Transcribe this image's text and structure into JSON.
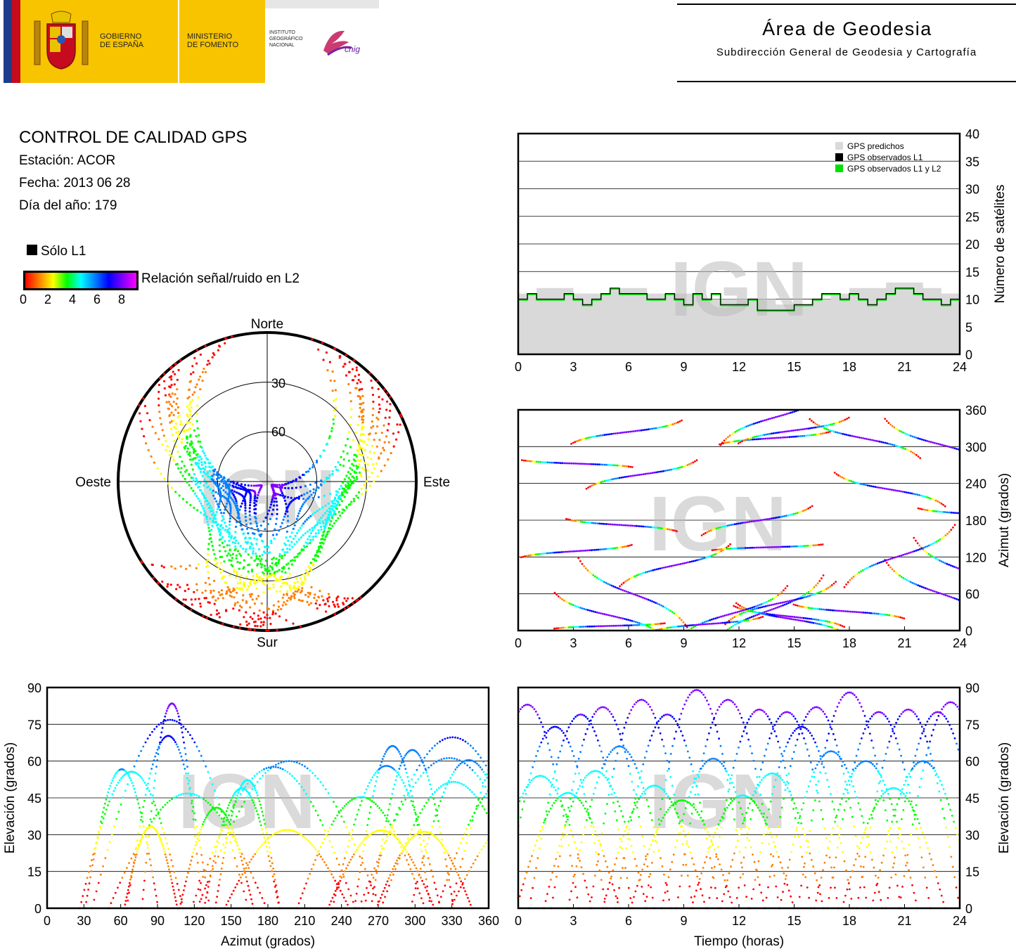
{
  "header": {
    "gobierno": [
      "GOBIERNO",
      "DE ESPAÑA"
    ],
    "ministerio": [
      "MINISTERIO",
      "DE FOMENTO"
    ],
    "instituto": [
      "INSTITUTO",
      "GEOGRÁFICO",
      "NACIONAL"
    ],
    "cnig": "cnig",
    "area_title": "Área de Geodesia",
    "area_subtitle": "Subdirección General de Geodesia y Cartografía"
  },
  "info": {
    "title": "CONTROL DE CALIDAD GPS",
    "station": "Estación: ACOR",
    "date": "Fecha: 2013 06 28",
    "doy": "Día del año: 179"
  },
  "legend": {
    "l1_only": "Sólo L1",
    "snr_label": "Relación señal/ruido en L2",
    "snr_ticks": [
      "0",
      "2",
      "4",
      "6",
      "8"
    ],
    "colorbar": [
      "#ff0000",
      "#ff8000",
      "#ffff00",
      "#00ff00",
      "#00ffff",
      "#0080ff",
      "#0000ff",
      "#8000ff",
      "#ff00ff"
    ]
  },
  "watermark": "IGN",
  "chart_data": [
    {
      "type": "polar-skyplot",
      "id": "skyplot",
      "labels": {
        "n": "Norte",
        "s": "Sur",
        "e": "Este",
        "w": "Oeste"
      },
      "ring_labels": [
        "30",
        "60"
      ],
      "rings_elevation": [
        0,
        30,
        60
      ]
    },
    {
      "type": "area-line",
      "id": "satcount",
      "ylabel": "Número de satélites",
      "xticks": [
        "0",
        "3",
        "6",
        "9",
        "12",
        "15",
        "18",
        "21",
        "24"
      ],
      "yticks": [
        "0",
        "5",
        "10",
        "15",
        "20",
        "25",
        "30",
        "35",
        "40"
      ],
      "xlim": [
        0,
        24
      ],
      "ylim": [
        0,
        40
      ],
      "legend": [
        {
          "name": "GPS predichos",
          "color": "#d9d9d9"
        },
        {
          "name": "GPS observados L1",
          "color": "#000000"
        },
        {
          "name": "GPS observados L1 y L2",
          "color": "#00e000"
        }
      ],
      "predicted_hours": [
        0,
        1,
        2,
        3,
        4,
        5,
        6,
        7,
        8,
        9,
        10,
        11,
        12,
        13,
        14,
        15,
        16,
        17,
        18,
        19,
        20,
        21,
        22,
        23,
        24
      ],
      "predicted_values": [
        11,
        12,
        12,
        11,
        11,
        12,
        12,
        11,
        11,
        11,
        10,
        10,
        10,
        10,
        9,
        9,
        10,
        11,
        12,
        12,
        13,
        13,
        12,
        11,
        11
      ],
      "observed_hours": [
        0,
        0.5,
        1,
        1.5,
        2,
        2.5,
        3,
        3.5,
        4,
        4.5,
        5,
        5.5,
        6,
        6.5,
        7,
        7.5,
        8,
        8.5,
        9,
        9.5,
        10,
        10.5,
        11,
        11.5,
        12,
        12.5,
        13,
        13.5,
        14,
        14.5,
        15,
        15.5,
        16,
        16.5,
        17,
        17.5,
        18,
        18.5,
        19,
        19.5,
        20,
        20.5,
        21,
        21.5,
        22,
        22.5,
        23,
        23.5,
        24
      ],
      "observed_values": [
        10,
        11,
        10,
        10,
        10,
        11,
        10,
        9,
        10,
        11,
        12,
        11,
        11,
        11,
        10,
        10,
        11,
        10,
        9,
        11,
        10,
        11,
        9,
        9,
        9,
        10,
        8,
        8,
        8,
        8,
        9,
        9,
        10,
        11,
        11,
        10,
        11,
        10,
        9,
        10,
        11,
        12,
        12,
        11,
        10,
        10,
        9,
        10,
        9
      ]
    },
    {
      "type": "scatter-tracks",
      "id": "azimuth_time",
      "ylabel": "Azimut (grados)",
      "xticks": [
        "0",
        "3",
        "6",
        "9",
        "12",
        "15",
        "18",
        "21",
        "24"
      ],
      "yticks": [
        "0",
        "60",
        "120",
        "180",
        "240",
        "300",
        "360"
      ],
      "xlim": [
        0,
        24
      ],
      "ylim": [
        0,
        360
      ]
    },
    {
      "type": "scatter-tracks",
      "id": "elev_azimuth",
      "xlabel": "Azimut (grados)",
      "ylabel": "Elevación (grados)",
      "xticks": [
        "0",
        "30",
        "60",
        "90",
        "120",
        "150",
        "180",
        "210",
        "240",
        "270",
        "300",
        "330",
        "360"
      ],
      "yticks": [
        "0",
        "15",
        "30",
        "45",
        "60",
        "75",
        "90"
      ],
      "xlim": [
        0,
        360
      ],
      "ylim": [
        0,
        90
      ]
    },
    {
      "type": "scatter-tracks",
      "id": "elev_time",
      "xlabel": "Tiempo (horas)",
      "ylabel": "Elevación (grados)",
      "xticks": [
        "0",
        "3",
        "6",
        "9",
        "12",
        "15",
        "18",
        "21",
        "24"
      ],
      "yticks": [
        "0",
        "15",
        "30",
        "45",
        "60",
        "75",
        "90"
      ],
      "xlim": [
        0,
        24
      ],
      "ylim": [
        0,
        90
      ],
      "passes": [
        {
          "peak_hour": 0.5,
          "max_elev": 83
        },
        {
          "peak_hour": 1.2,
          "max_elev": 54
        },
        {
          "peak_hour": 2.0,
          "max_elev": 74
        },
        {
          "peak_hour": 2.7,
          "max_elev": 47
        },
        {
          "peak_hour": 3.4,
          "max_elev": 79
        },
        {
          "peak_hour": 4.2,
          "max_elev": 56
        },
        {
          "peak_hour": 4.6,
          "max_elev": 82
        },
        {
          "peak_hour": 5.5,
          "max_elev": 66
        },
        {
          "peak_hour": 6.7,
          "max_elev": 85
        },
        {
          "peak_hour": 7.4,
          "max_elev": 50
        },
        {
          "peak_hour": 8.1,
          "max_elev": 79
        },
        {
          "peak_hour": 8.9,
          "max_elev": 44
        },
        {
          "peak_hour": 9.7,
          "max_elev": 89
        },
        {
          "peak_hour": 10.6,
          "max_elev": 61
        },
        {
          "peak_hour": 11.4,
          "max_elev": 85
        },
        {
          "peak_hour": 12.2,
          "max_elev": 46
        },
        {
          "peak_hour": 13.1,
          "max_elev": 81
        },
        {
          "peak_hour": 13.8,
          "max_elev": 55
        },
        {
          "peak_hour": 14.6,
          "max_elev": 80
        },
        {
          "peak_hour": 15.4,
          "max_elev": 74
        },
        {
          "peak_hour": 16.2,
          "max_elev": 82
        },
        {
          "peak_hour": 17.0,
          "max_elev": 64
        },
        {
          "peak_hour": 18.0,
          "max_elev": 88
        },
        {
          "peak_hour": 18.9,
          "max_elev": 60
        },
        {
          "peak_hour": 19.6,
          "max_elev": 80
        },
        {
          "peak_hour": 20.4,
          "max_elev": 49
        },
        {
          "peak_hour": 21.2,
          "max_elev": 81
        },
        {
          "peak_hour": 22.0,
          "max_elev": 60
        },
        {
          "peak_hour": 22.8,
          "max_elev": 80
        },
        {
          "peak_hour": 23.5,
          "max_elev": 84
        }
      ]
    }
  ]
}
